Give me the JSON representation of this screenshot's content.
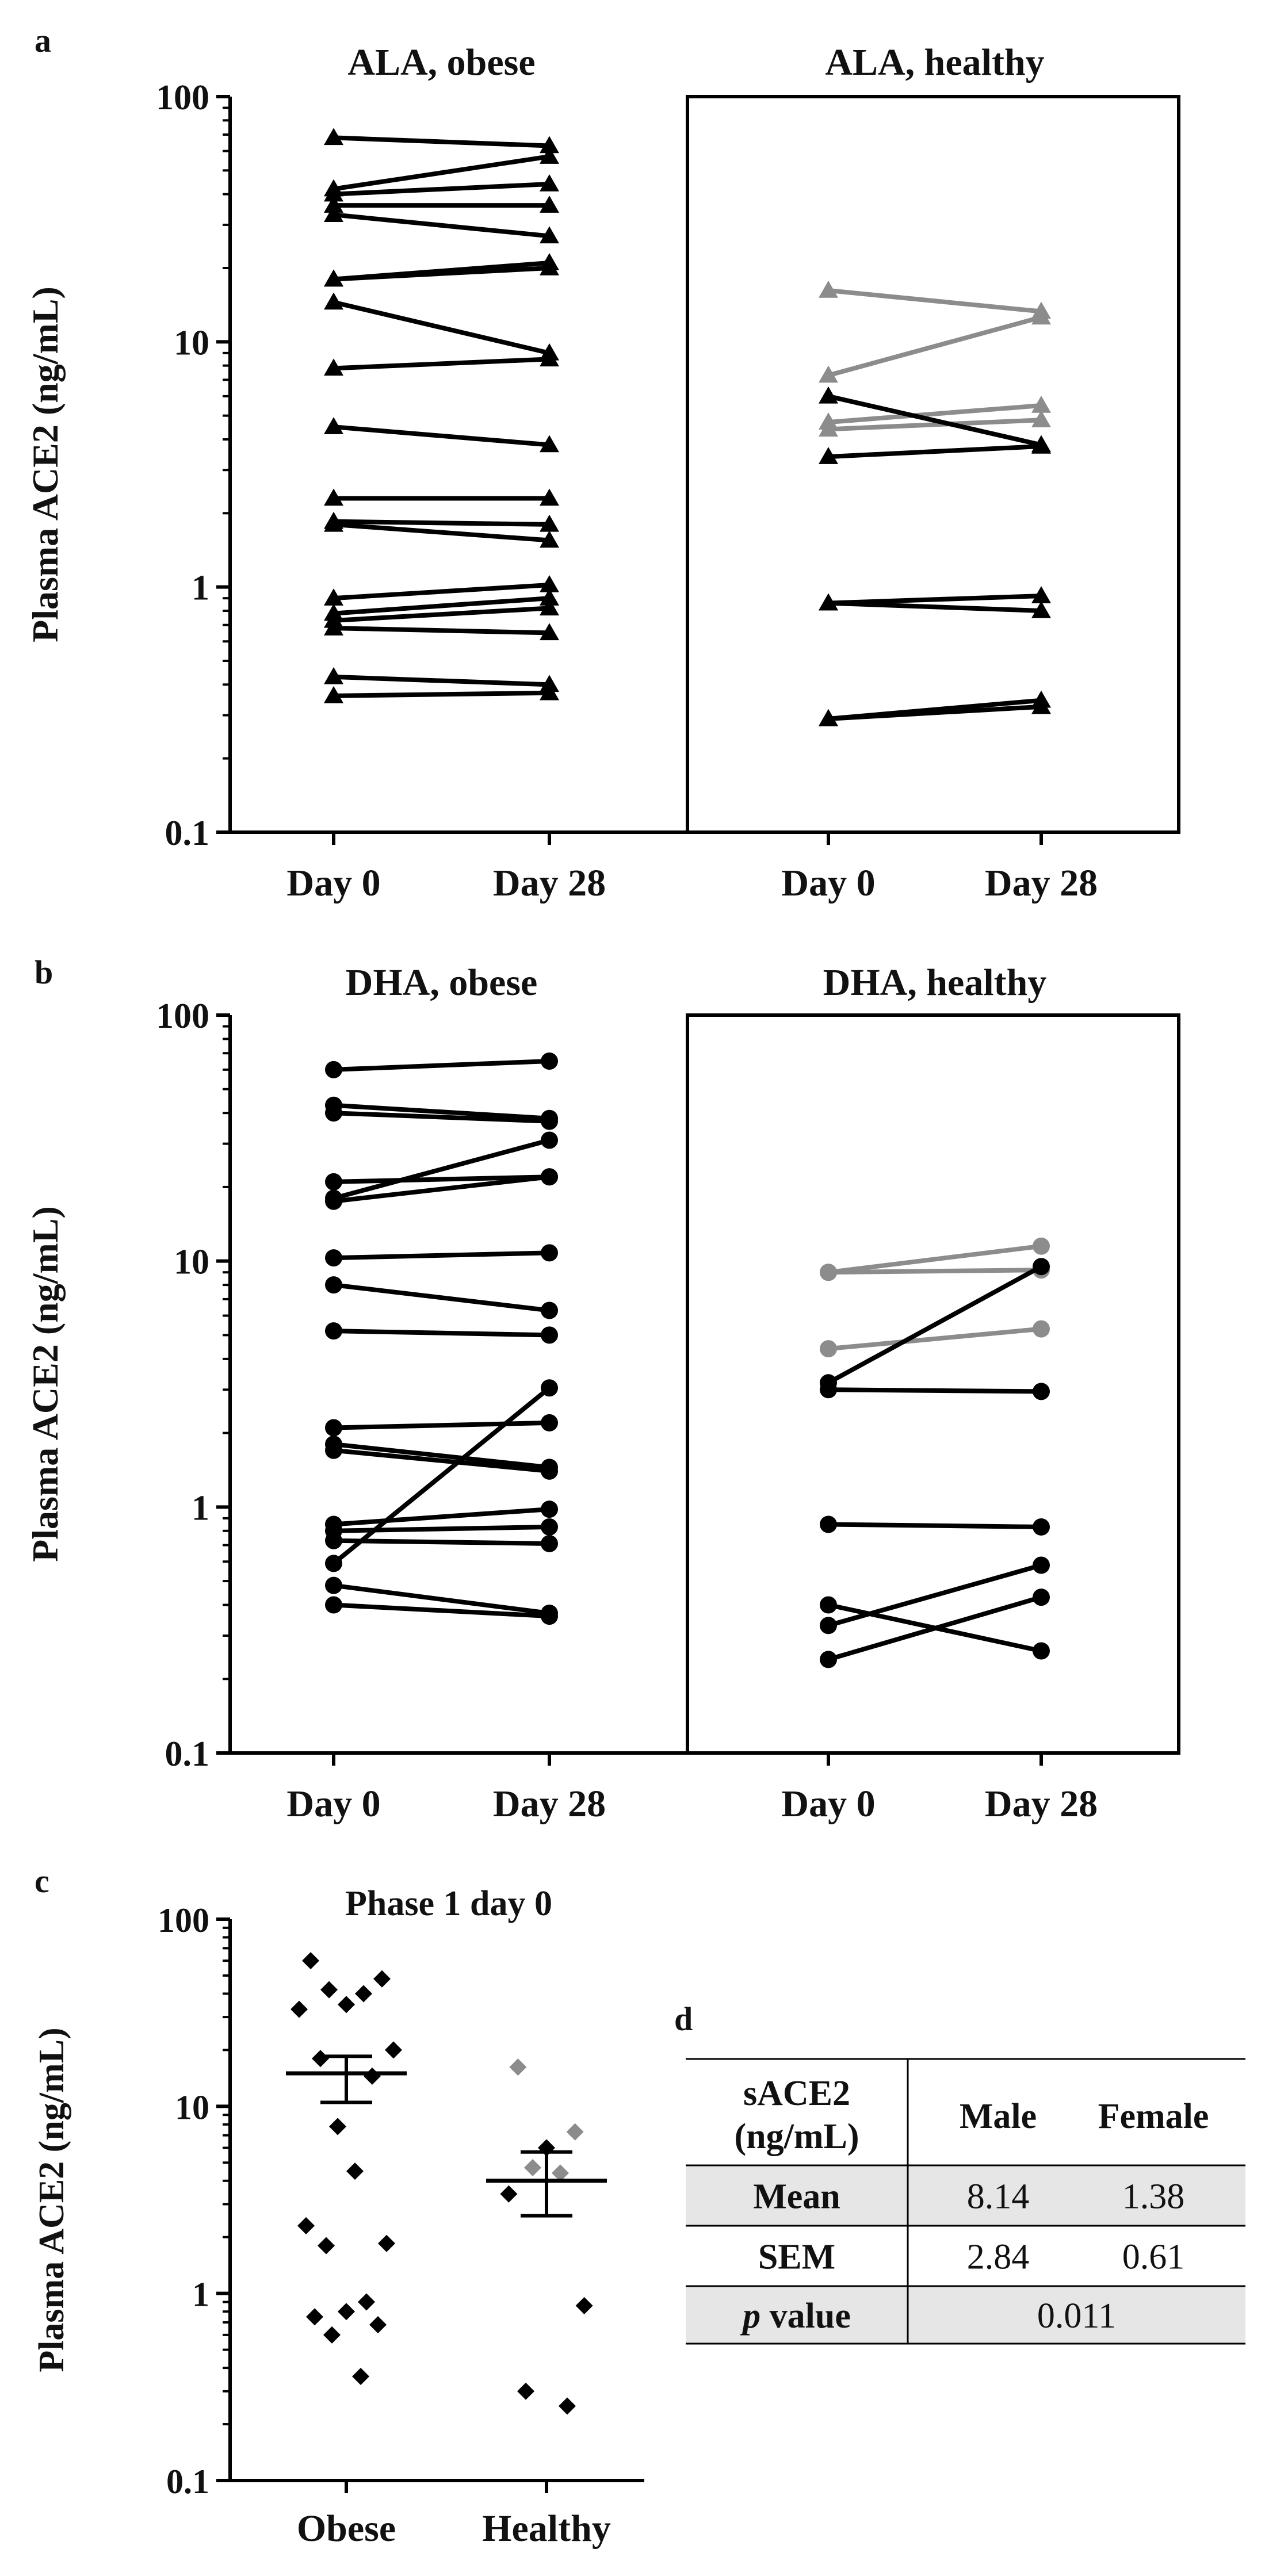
{
  "colors": {
    "black": "#000000",
    "gray": "#8c8c8c",
    "cell_shade": "#e6e6e6"
  },
  "chart_data": [
    {
      "id": "a",
      "panel_label": "a",
      "type": "line",
      "scale": "log",
      "ylabel": "Plasma ACE2 (ng/mL)",
      "ylim": [
        0.1,
        100
      ],
      "yticks": [
        "100",
        "10",
        "1",
        "0.1"
      ],
      "marker": "triangle",
      "subplots": [
        {
          "title": "ALA, obese",
          "categories": [
            "Day 0",
            "Day 28"
          ],
          "series": [
            {
              "values": [
                68,
                63
              ],
              "color": "black"
            },
            {
              "values": [
                42,
                57
              ],
              "color": "black"
            },
            {
              "values": [
                40,
                44
              ],
              "color": "black"
            },
            {
              "values": [
                36,
                36
              ],
              "color": "black"
            },
            {
              "values": [
                33,
                27
              ],
              "color": "black"
            },
            {
              "values": [
                18,
                21
              ],
              "color": "black"
            },
            {
              "values": [
                18,
                20
              ],
              "color": "black"
            },
            {
              "values": [
                14.5,
                9.0
              ],
              "color": "black"
            },
            {
              "values": [
                7.8,
                8.5
              ],
              "color": "black"
            },
            {
              "values": [
                4.5,
                3.8
              ],
              "color": "black"
            },
            {
              "values": [
                2.3,
                2.3
              ],
              "color": "black"
            },
            {
              "values": [
                1.85,
                1.8
              ],
              "color": "black"
            },
            {
              "values": [
                1.8,
                1.55
              ],
              "color": "black"
            },
            {
              "values": [
                0.9,
                1.02
              ],
              "color": "black"
            },
            {
              "values": [
                0.78,
                0.9
              ],
              "color": "black"
            },
            {
              "values": [
                0.73,
                0.82
              ],
              "color": "black"
            },
            {
              "values": [
                0.68,
                0.65
              ],
              "color": "black"
            },
            {
              "values": [
                0.43,
                0.4
              ],
              "color": "black"
            },
            {
              "values": [
                0.36,
                0.37
              ],
              "color": "black"
            }
          ]
        },
        {
          "title": "ALA, healthy",
          "categories": [
            "Day 0",
            "Day 28"
          ],
          "series": [
            {
              "values": [
                16.2,
                13.3
              ],
              "color": "gray"
            },
            {
              "values": [
                7.3,
                12.6
              ],
              "color": "gray"
            },
            {
              "values": [
                4.7,
                5.5
              ],
              "color": "gray"
            },
            {
              "values": [
                4.4,
                4.8
              ],
              "color": "gray"
            },
            {
              "values": [
                6.0,
                3.8
              ],
              "color": "black"
            },
            {
              "values": [
                3.4,
                3.75
              ],
              "color": "black"
            },
            {
              "values": [
                0.86,
                0.92
              ],
              "color": "black"
            },
            {
              "values": [
                0.86,
                0.8
              ],
              "color": "black"
            },
            {
              "values": [
                0.29,
                0.345
              ],
              "color": "black"
            },
            {
              "values": [
                0.29,
                0.325
              ],
              "color": "black"
            }
          ]
        }
      ]
    },
    {
      "id": "b",
      "panel_label": "b",
      "type": "line",
      "scale": "log",
      "ylabel": "Plasma ACE2 (ng/mL)",
      "ylim": [
        0.1,
        100
      ],
      "yticks": [
        "100",
        "10",
        "1",
        "0.1"
      ],
      "marker": "circle",
      "subplots": [
        {
          "title": "DHA, obese",
          "categories": [
            "Day 0",
            "Day 28"
          ],
          "series": [
            {
              "values": [
                60,
                65
              ],
              "color": "black"
            },
            {
              "values": [
                43,
                38
              ],
              "color": "black"
            },
            {
              "values": [
                40,
                37
              ],
              "color": "black"
            },
            {
              "values": [
                21,
                22
              ],
              "color": "black"
            },
            {
              "values": [
                18,
                31
              ],
              "color": "black"
            },
            {
              "values": [
                17.5,
                22
              ],
              "color": "black"
            },
            {
              "values": [
                10.3,
                10.8
              ],
              "color": "black"
            },
            {
              "values": [
                8.0,
                6.3
              ],
              "color": "black"
            },
            {
              "values": [
                5.2,
                5.0
              ],
              "color": "black"
            },
            {
              "values": [
                2.1,
                2.2
              ],
              "color": "black"
            },
            {
              "values": [
                1.8,
                1.45
              ],
              "color": "black"
            },
            {
              "values": [
                1.7,
                1.4
              ],
              "color": "black"
            },
            {
              "values": [
                0.85,
                0.98
              ],
              "color": "black"
            },
            {
              "values": [
                0.8,
                0.83
              ],
              "color": "black"
            },
            {
              "values": [
                0.73,
                0.71
              ],
              "color": "black"
            },
            {
              "values": [
                0.59,
                3.05
              ],
              "color": "black"
            },
            {
              "values": [
                0.48,
                0.37
              ],
              "color": "black"
            },
            {
              "values": [
                0.4,
                0.36
              ],
              "color": "black"
            }
          ]
        },
        {
          "title": "DHA, healthy",
          "categories": [
            "Day 0",
            "Day 28"
          ],
          "series": [
            {
              "values": [
                9.0,
                11.5
              ],
              "color": "gray"
            },
            {
              "values": [
                9.0,
                9.2
              ],
              "color": "gray"
            },
            {
              "values": [
                4.4,
                5.3
              ],
              "color": "gray"
            },
            {
              "values": [
                3.2,
                9.5
              ],
              "color": "black"
            },
            {
              "values": [
                3.0,
                2.95
              ],
              "color": "black"
            },
            {
              "values": [
                0.85,
                0.83
              ],
              "color": "black"
            },
            {
              "values": [
                0.4,
                0.26
              ],
              "color": "black"
            },
            {
              "values": [
                0.33,
                0.58
              ],
              "color": "black"
            },
            {
              "values": [
                0.24,
                0.43
              ],
              "color": "black"
            }
          ]
        }
      ]
    },
    {
      "id": "c",
      "panel_label": "c",
      "type": "scatter",
      "scale": "log",
      "title": "Phase 1 day 0",
      "ylabel": "Plasma ACE2 (ng/mL)",
      "ylim": [
        0.1,
        100
      ],
      "yticks": [
        "100",
        "10",
        "1",
        "0.1"
      ],
      "categories": [
        "Obese",
        "Healthy"
      ],
      "groups": [
        {
          "name": "Obese",
          "mean": 15,
          "sem_low": 10.5,
          "sem_high": 18.5,
          "points": [
            {
              "value": 60,
              "color": "black"
            },
            {
              "value": 48,
              "color": "black"
            },
            {
              "value": 42,
              "color": "black"
            },
            {
              "value": 40,
              "color": "black"
            },
            {
              "value": 35,
              "color": "black"
            },
            {
              "value": 33,
              "color": "black"
            },
            {
              "value": 20,
              "color": "black"
            },
            {
              "value": 18,
              "color": "black"
            },
            {
              "value": 14.5,
              "color": "black"
            },
            {
              "value": 7.8,
              "color": "black"
            },
            {
              "value": 4.5,
              "color": "black"
            },
            {
              "value": 2.3,
              "color": "black"
            },
            {
              "value": 1.85,
              "color": "black"
            },
            {
              "value": 1.8,
              "color": "black"
            },
            {
              "value": 0.9,
              "color": "black"
            },
            {
              "value": 0.8,
              "color": "black"
            },
            {
              "value": 0.75,
              "color": "black"
            },
            {
              "value": 0.68,
              "color": "black"
            },
            {
              "value": 0.6,
              "color": "black"
            },
            {
              "value": 0.36,
              "color": "black"
            }
          ]
        },
        {
          "name": "Healthy",
          "mean": 4.0,
          "sem_low": 2.6,
          "sem_high": 5.7,
          "points": [
            {
              "value": 16.2,
              "color": "gray"
            },
            {
              "value": 7.3,
              "color": "gray"
            },
            {
              "value": 4.7,
              "color": "gray"
            },
            {
              "value": 4.4,
              "color": "gray"
            },
            {
              "value": 6.0,
              "color": "black"
            },
            {
              "value": 3.4,
              "color": "black"
            },
            {
              "value": 0.86,
              "color": "black"
            },
            {
              "value": 0.3,
              "color": "black"
            },
            {
              "value": 0.25,
              "color": "black"
            }
          ]
        }
      ]
    },
    {
      "id": "d",
      "panel_label": "d",
      "type": "table",
      "header": [
        "sACE2\n(ng/mL)",
        "Male",
        "Female"
      ],
      "rows": [
        {
          "label": "Mean",
          "male": "8.14",
          "female": "1.38"
        },
        {
          "label": "SEM",
          "male": "2.84",
          "female": "0.61"
        },
        {
          "label_italic": "p",
          "label_rest": " value",
          "combined": "0.011"
        }
      ]
    }
  ]
}
